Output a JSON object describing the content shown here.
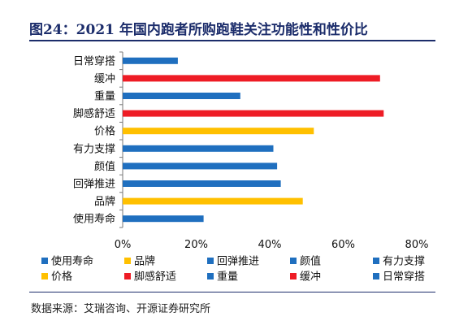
{
  "header": {
    "title": "图24：2021 年国内跑者所购跑鞋关注功能性和性价比"
  },
  "footer": {
    "source": "数据来源：艾瑞咨询、开源证券研究所"
  },
  "colors": {
    "blue": "#1f6fbf",
    "red": "#ee1c25",
    "yellow": "#ffc000",
    "title": "#1c2d6b"
  },
  "chart_data": {
    "type": "bar",
    "orientation": "horizontal",
    "categories": [
      "日常穿搭",
      "缓冲",
      "重量",
      "脚感舒适",
      "价格",
      "有力支撑",
      "颜值",
      "回弹推进",
      "品牌",
      "使用寿命"
    ],
    "values": [
      15,
      70,
      32,
      71,
      52,
      41,
      42,
      43,
      49,
      22
    ],
    "bar_colors": [
      "blue",
      "red",
      "blue",
      "red",
      "yellow",
      "blue",
      "blue",
      "blue",
      "yellow",
      "blue"
    ],
    "value_format": "percent",
    "xlim": [
      0,
      80
    ],
    "x_ticks": [
      "0%",
      "20%",
      "40%",
      "60%",
      "80%"
    ],
    "grid": false,
    "legend_position": "bottom",
    "legend": [
      {
        "label": "使用寿命",
        "color": "blue"
      },
      {
        "label": "品牌",
        "color": "yellow"
      },
      {
        "label": "回弹推进",
        "color": "blue"
      },
      {
        "label": "颜值",
        "color": "blue"
      },
      {
        "label": "有力支撑",
        "color": "blue"
      },
      {
        "label": "价格",
        "color": "yellow"
      },
      {
        "label": "脚感舒适",
        "color": "red"
      },
      {
        "label": "重量",
        "color": "blue"
      },
      {
        "label": "缓冲",
        "color": "red"
      },
      {
        "label": "日常穿搭",
        "color": "blue"
      }
    ]
  }
}
